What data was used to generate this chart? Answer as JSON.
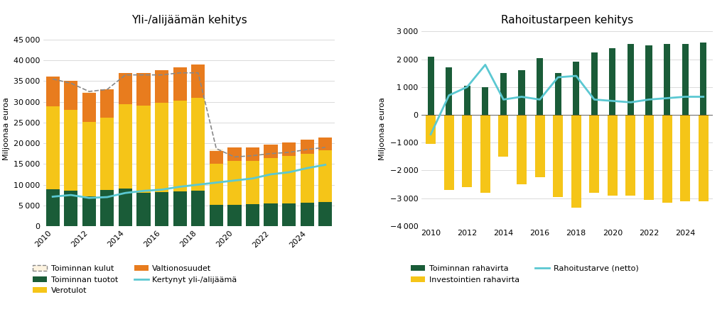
{
  "left_title": "Yli-/alijäämän kehitys",
  "right_title": "Rahoitustarpeen kehitys",
  "ylabel_left": "Miljoonaa euroa",
  "ylabel_right": "Miljoonaa euroa",
  "years": [
    2010,
    2011,
    2012,
    2013,
    2014,
    2015,
    2016,
    2017,
    2018,
    2019,
    2020,
    2021,
    2022,
    2023,
    2024,
    2025
  ],
  "xtick_labels_even": [
    "2010",
    "",
    "2012",
    "",
    "2014",
    "",
    "2016",
    "",
    "2018",
    "",
    "2020",
    "",
    "2022",
    "",
    "2024",
    ""
  ],
  "toiminnan_tuotot": [
    8900,
    8500,
    7200,
    8700,
    9000,
    8000,
    8200,
    8300,
    8500,
    5100,
    5200,
    5300,
    5400,
    5500,
    5700,
    5800
  ],
  "verotulot": [
    20000,
    19500,
    18000,
    17500,
    20500,
    21000,
    21500,
    22000,
    22500,
    10000,
    10500,
    10500,
    11000,
    11500,
    11800,
    12500
  ],
  "valtionosuudet": [
    7200,
    7000,
    7000,
    6800,
    7500,
    8000,
    8000,
    8000,
    8000,
    3000,
    3300,
    3200,
    3300,
    3200,
    3300,
    3000
  ],
  "toiminnan_kulut_line": [
    35500,
    34500,
    32500,
    33000,
    36500,
    36500,
    36500,
    37000,
    37000,
    18700,
    16700,
    17000,
    17500,
    17800,
    18500,
    19000
  ],
  "kertynyt_ylijaaema": [
    7100,
    7500,
    6800,
    7000,
    8000,
    8500,
    8800,
    9500,
    10000,
    10500,
    11000,
    11500,
    12500,
    13000,
    14000,
    14800
  ],
  "toiminnan_rahavirta": [
    2100,
    1700,
    1050,
    1000,
    1500,
    1600,
    2050,
    1500,
    1900,
    2250,
    2400,
    2550,
    2500,
    2550,
    2550,
    2600
  ],
  "investointien_rahavirta": [
    -1050,
    -2700,
    -2600,
    -2800,
    -1500,
    -2500,
    -2250,
    -2950,
    -3350,
    -2800,
    -2900,
    -2900,
    -3050,
    -3150,
    -3100,
    -3100
  ],
  "rahoitustarve_netto": [
    -700,
    700,
    1000,
    1800,
    550,
    650,
    550,
    1350,
    1400,
    550,
    500,
    450,
    550,
    600,
    650,
    650
  ],
  "color_tuotot": "#1a5c38",
  "color_verotulot": "#f5c518",
  "color_valtionosuudet": "#e87c1e",
  "color_kulut_fill": "#fdf3e0",
  "color_kulut_line": "#888888",
  "color_kertynyt": "#5bc8d2",
  "color_toiminnan_rahavirta": "#1a5c38",
  "color_investointien_rahavirta": "#f5c518",
  "color_rahoitustarve": "#5bc8d2",
  "left_ylim": [
    0,
    47000
  ],
  "right_ylim": [
    -4000,
    3000
  ],
  "left_yticks": [
    0,
    5000,
    10000,
    15000,
    20000,
    25000,
    30000,
    35000,
    40000,
    45000
  ],
  "right_yticks": [
    -4000,
    -3000,
    -2000,
    -1000,
    0,
    1000,
    2000,
    3000
  ]
}
